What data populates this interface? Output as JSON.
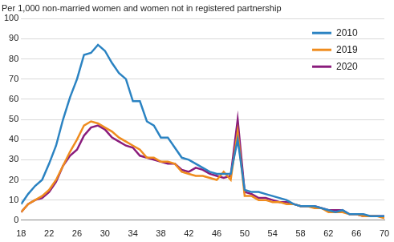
{
  "chart_data": {
    "type": "line",
    "ylabel": "Per 1,000 non-married women and women not in registered partnership",
    "x": [
      18,
      19,
      20,
      21,
      22,
      23,
      24,
      25,
      26,
      27,
      28,
      29,
      30,
      31,
      32,
      33,
      34,
      35,
      36,
      37,
      38,
      39,
      40,
      41,
      42,
      43,
      44,
      45,
      46,
      47,
      48,
      49,
      50,
      51,
      52,
      53,
      54,
      55,
      56,
      57,
      58,
      59,
      60,
      61,
      62,
      63,
      64,
      65,
      66,
      67,
      68,
      69,
      70
    ],
    "series": [
      {
        "name": "2010",
        "color": "#2b83c2",
        "values": [
          8,
          13,
          17,
          20,
          28,
          37,
          50,
          61,
          70,
          82,
          83,
          87,
          84,
          78,
          73,
          70,
          59,
          59,
          49,
          47,
          41,
          41,
          36,
          31,
          30,
          28,
          26,
          24,
          23,
          23,
          23,
          40,
          15,
          14,
          14,
          13,
          12,
          11,
          10,
          8,
          7,
          7,
          7,
          6,
          5,
          4,
          5,
          3,
          3,
          3,
          2,
          2,
          2
        ]
      },
      {
        "name": "2019",
        "color": "#ef8c1e",
        "values": [
          4,
          8,
          10,
          12,
          15,
          20,
          27,
          34,
          40,
          47,
          49,
          48,
          46,
          44,
          41,
          39,
          37,
          35,
          31,
          31,
          29,
          29,
          28,
          24,
          23,
          22,
          22,
          21,
          20,
          24,
          20,
          44,
          12,
          12,
          10,
          10,
          9,
          9,
          8,
          8,
          7,
          7,
          6,
          6,
          4,
          4,
          4,
          3,
          3,
          2,
          2,
          2,
          1
        ]
      },
      {
        "name": "2020",
        "color": "#8a1c7c",
        "values": [
          4,
          8,
          10,
          11,
          14,
          19,
          27,
          32,
          35,
          42,
          46,
          47,
          45,
          41,
          39,
          37,
          36,
          32,
          31,
          30,
          29,
          28,
          28,
          25,
          24,
          26,
          25,
          23,
          22,
          21,
          22,
          50,
          14,
          13,
          11,
          11,
          10,
          9,
          9,
          8,
          7,
          7,
          7,
          6,
          5,
          5,
          5,
          3,
          3,
          2,
          2,
          2,
          2
        ]
      }
    ],
    "xlim": [
      18,
      70
    ],
    "xticks": [
      18,
      22,
      26,
      30,
      34,
      38,
      42,
      46,
      50,
      54,
      58,
      62,
      66,
      70
    ],
    "ylim": [
      0,
      100
    ],
    "yticks": [
      0,
      10,
      20,
      30,
      40,
      50,
      60,
      70,
      80,
      90,
      100
    ],
    "grid": true,
    "legend": "upper right"
  }
}
